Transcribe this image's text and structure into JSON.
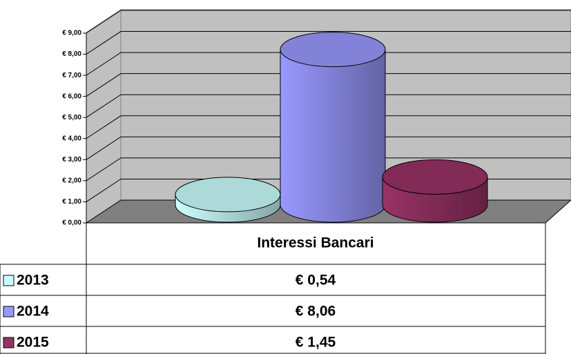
{
  "chart_data": {
    "type": "bar",
    "categories": [
      "Interessi Bancari"
    ],
    "series": [
      {
        "name": "2013",
        "color": "#ccffff",
        "values": [
          0.54
        ],
        "value_labels": [
          "€ 0,54"
        ]
      },
      {
        "name": "2014",
        "color": "#9999ff",
        "values": [
          8.06
        ],
        "value_labels": [
          "€ 8,06"
        ]
      },
      {
        "name": "2015",
        "color": "#993366",
        "values": [
          1.45
        ],
        "value_labels": [
          "€ 1,45"
        ]
      }
    ],
    "ylim": [
      0,
      9
    ],
    "yticks": [
      {
        "value": 0,
        "label": "€ 0,00"
      },
      {
        "value": 1,
        "label": "€ 1,00"
      },
      {
        "value": 2,
        "label": "€ 2,00"
      },
      {
        "value": 3,
        "label": "€ 3,00"
      },
      {
        "value": 4,
        "label": "€ 4,00"
      },
      {
        "value": 5,
        "label": "€ 5,00"
      },
      {
        "value": 6,
        "label": "€ 6,00"
      },
      {
        "value": 7,
        "label": "€ 7,00"
      },
      {
        "value": 8,
        "label": "€ 8,00"
      },
      {
        "value": 9,
        "label": "€ 9,00"
      }
    ],
    "grid": true,
    "data_table": true
  }
}
